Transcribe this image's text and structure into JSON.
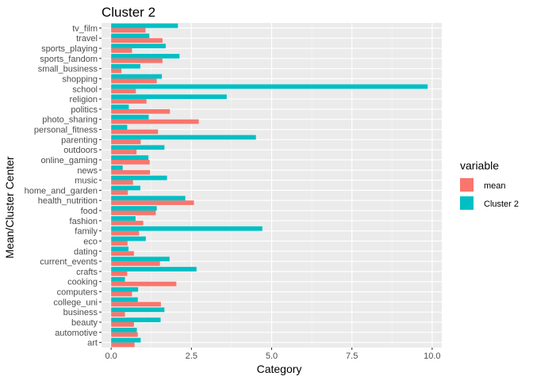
{
  "chart_data": {
    "type": "bar",
    "orientation": "horizontal",
    "title": "Cluster 2",
    "xlabel": "Category",
    "ylabel": "Mean/Cluster Center",
    "xlim": [
      -0.3,
      10.3
    ],
    "x_ticks": [
      "0.0",
      "2.5",
      "5.0",
      "7.5",
      "10.0"
    ],
    "x_tick_values": [
      0,
      2.5,
      5,
      7.5,
      10
    ],
    "grid": true,
    "legend_position": "right",
    "legend_title": "variable",
    "categories": [
      "tv_film",
      "travel",
      "sports_playing",
      "sports_fandom",
      "small_business",
      "shopping",
      "school",
      "religion",
      "politics",
      "photo_sharing",
      "personal_fitness",
      "parenting",
      "outdoors",
      "online_gaming",
      "news",
      "music",
      "home_and_garden",
      "health_nutrition",
      "food",
      "fashion",
      "family",
      "eco",
      "dating",
      "current_events",
      "crafts",
      "cooking",
      "computers",
      "college_uni",
      "business",
      "beauty",
      "automotive",
      "art"
    ],
    "series": [
      {
        "name": "mean",
        "color": "#F8766D",
        "values": [
          1.07,
          1.6,
          0.65,
          1.6,
          0.32,
          1.42,
          0.77,
          1.1,
          1.83,
          2.73,
          1.46,
          0.92,
          0.79,
          1.2,
          1.21,
          0.68,
          0.52,
          2.58,
          1.39,
          1.0,
          0.87,
          0.51,
          0.71,
          1.52,
          0.5,
          2.03,
          0.65,
          1.55,
          0.43,
          0.71,
          0.83,
          0.73
        ]
      },
      {
        "name": "Cluster 2",
        "color": "#00BFC4",
        "values": [
          2.08,
          1.19,
          1.7,
          2.13,
          0.91,
          1.58,
          9.86,
          3.6,
          0.55,
          1.17,
          0.5,
          4.51,
          1.66,
          1.16,
          0.36,
          1.74,
          0.91,
          2.31,
          1.42,
          0.76,
          4.71,
          1.08,
          0.54,
          1.82,
          2.66,
          0.43,
          0.84,
          0.83,
          1.66,
          1.54,
          0.8,
          0.92
        ]
      }
    ]
  },
  "colors": {
    "panel_background": "#EBEBEB",
    "grid_major": "#FFFFFF",
    "grid_minor": "#F5F5F5",
    "tick_text": "#4D4D4D"
  }
}
